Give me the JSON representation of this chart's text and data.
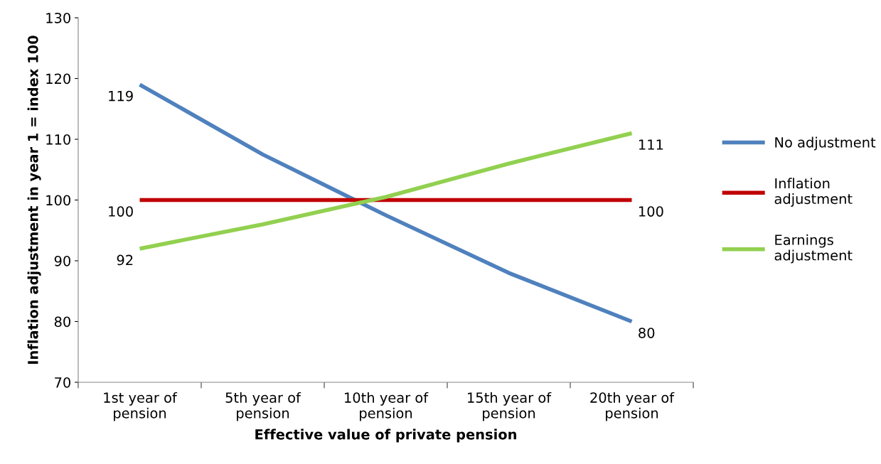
{
  "chart_data": {
    "type": "line",
    "xlabel": "Effective value of private pension",
    "ylabel": "Inflation adjustment in year 1 = index 100",
    "categories": [
      "1st year of pension",
      "5th year of pension",
      "10th year of pension",
      "15th year of pension",
      "20th year of pension"
    ],
    "series": [
      {
        "name": "No adjustment",
        "color": "#4f81bd",
        "values": [
          119,
          107.5,
          97.5,
          88,
          80
        ],
        "value_labels": [
          "119",
          null,
          null,
          null,
          "80"
        ]
      },
      {
        "name": "Inflation adjustment",
        "color": "#c00000",
        "values": [
          100,
          100,
          100,
          100,
          100
        ],
        "value_labels": [
          "100",
          null,
          null,
          null,
          "100"
        ]
      },
      {
        "name": "Earnings adjustment",
        "color": "#92d050",
        "values": [
          92,
          96,
          100.5,
          106,
          111
        ],
        "value_labels": [
          "92",
          null,
          null,
          null,
          "111"
        ]
      }
    ],
    "ylim": [
      70,
      130
    ],
    "yticks": [
      70,
      80,
      90,
      100,
      110,
      120,
      130
    ],
    "grid": false,
    "legend": "right",
    "marker": "none",
    "line_style": "solid"
  }
}
